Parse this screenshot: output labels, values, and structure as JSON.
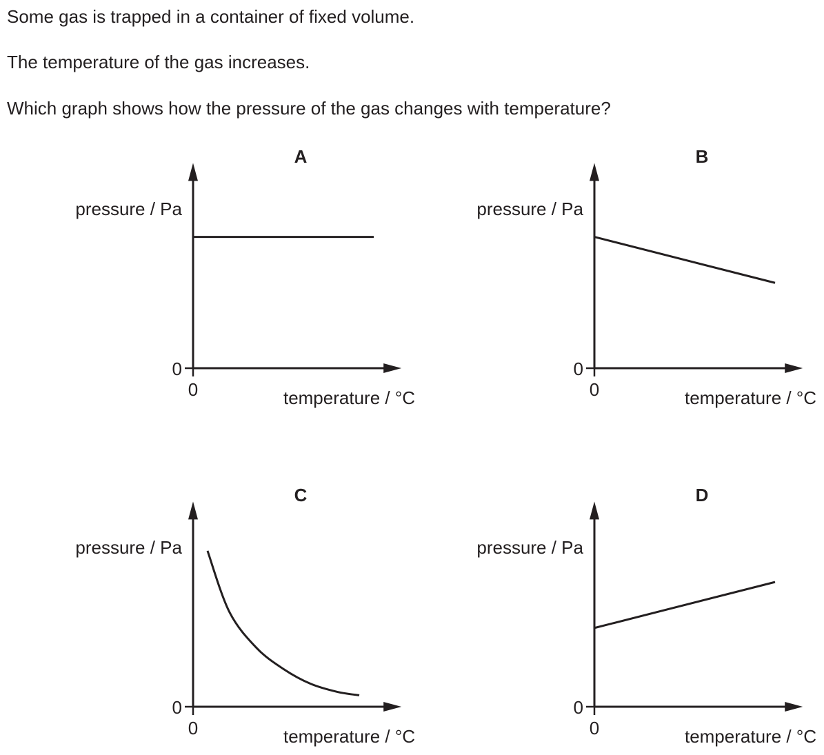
{
  "question": {
    "lines": [
      "Some gas is trapped in a container of fixed volume.",
      "The temperature of the gas increases.",
      "Which graph shows how the pressure of the gas changes with temperature?"
    ]
  },
  "chart_data": [
    {
      "type": "line",
      "panel": "A",
      "ylabel": "pressure / Pa",
      "xlabel": "temperature / °C",
      "x_origin_label": "0",
      "y_origin_label": "0",
      "series": [
        {
          "x": [
            0,
            1
          ],
          "y": [
            0.8,
            0.8
          ]
        }
      ],
      "xlim": [
        0,
        1.1
      ],
      "ylim": [
        0,
        1.2
      ],
      "grid": false
    },
    {
      "type": "line",
      "panel": "B",
      "ylabel": "pressure / Pa",
      "xlabel": "temperature / °C",
      "x_origin_label": "0",
      "y_origin_label": "0",
      "series": [
        {
          "x": [
            0,
            1
          ],
          "y": [
            0.8,
            0.52
          ]
        }
      ],
      "xlim": [
        0,
        1.1
      ],
      "ylim": [
        0,
        1.2
      ],
      "grid": false
    },
    {
      "type": "line",
      "panel": "C",
      "ylabel": "pressure / Pa",
      "xlabel": "temperature / °C",
      "x_origin_label": "0",
      "y_origin_label": "0",
      "series": [
        {
          "x": [
            0.08,
            0.2,
            0.35,
            0.5,
            0.65,
            0.8,
            0.92
          ],
          "y": [
            0.95,
            0.58,
            0.36,
            0.23,
            0.14,
            0.09,
            0.07
          ]
        }
      ],
      "xlim": [
        0,
        1.1
      ],
      "ylim": [
        0,
        1.2
      ],
      "grid": false
    },
    {
      "type": "line",
      "panel": "D",
      "ylabel": "pressure / Pa",
      "xlabel": "temperature / °C",
      "x_origin_label": "0",
      "y_origin_label": "0",
      "series": [
        {
          "x": [
            0,
            1
          ],
          "y": [
            0.48,
            0.76
          ]
        }
      ],
      "xlim": [
        0,
        1.1
      ],
      "ylim": [
        0,
        1.2
      ],
      "grid": false
    }
  ]
}
